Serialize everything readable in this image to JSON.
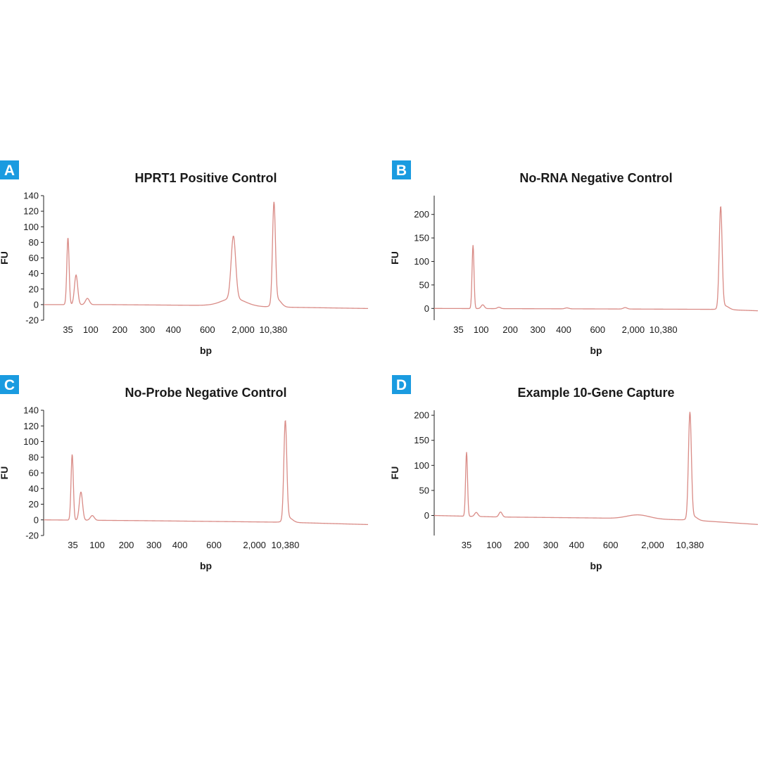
{
  "chart_data": [
    {
      "panel": "A",
      "type": "line",
      "title": "HPRT1 Positive Control",
      "xlabel": "bp",
      "ylabel": "FU",
      "yticks": [
        -20,
        0,
        20,
        40,
        60,
        80,
        100,
        120,
        140
      ],
      "ylim": [
        -20,
        140
      ],
      "xticks": [
        "35",
        "100",
        "200",
        "300",
        "400",
        "600",
        "2,000",
        "10,380"
      ],
      "xlim": [
        0,
        100
      ],
      "xtick_pos": [
        7.5,
        14.5,
        23.5,
        32,
        40,
        50.5,
        61.5,
        70.8
      ],
      "baseline": [
        [
          0,
          0
        ],
        [
          20,
          0
        ],
        [
          50,
          -1
        ],
        [
          70,
          -3
        ],
        [
          100,
          -5
        ]
      ],
      "peaks": [
        {
          "x": 7.5,
          "y": 86,
          "w": 0.35
        },
        {
          "x": 10,
          "y": 38,
          "w": 0.5
        },
        {
          "x": 13.5,
          "y": 8,
          "w": 0.6
        },
        {
          "x": 58.5,
          "y": 80,
          "w": 0.7
        },
        {
          "x": 58.5,
          "y": 10,
          "w": 3.5
        },
        {
          "x": 71,
          "y": 128,
          "w": 0.45
        },
        {
          "x": 72,
          "y": 10,
          "w": 1.2
        }
      ]
    },
    {
      "panel": "B",
      "type": "line",
      "title": "No-RNA Negative Control",
      "xlabel": "bp",
      "ylabel": "FU",
      "yticks": [
        0,
        50,
        100,
        150,
        200
      ],
      "ylim": [
        -25,
        240
      ],
      "xticks": [
        "35",
        "100",
        "200",
        "300",
        "400",
        "600",
        "2,000",
        "10,380"
      ],
      "xlim": [
        0,
        100
      ],
      "xtick_pos": [
        7.5,
        14.5,
        23.5,
        32,
        40,
        50.5,
        61.5,
        70.8
      ],
      "baseline": [
        [
          0,
          0
        ],
        [
          50,
          -1
        ],
        [
          88,
          -2
        ],
        [
          100,
          -5
        ]
      ],
      "peaks": [
        {
          "x": 12,
          "y": 135,
          "w": 0.3
        },
        {
          "x": 15,
          "y": 8,
          "w": 0.5
        },
        {
          "x": 20,
          "y": 3,
          "w": 0.5
        },
        {
          "x": 41,
          "y": 2,
          "w": 0.6
        },
        {
          "x": 59,
          "y": 3,
          "w": 0.6
        },
        {
          "x": 88.5,
          "y": 215,
          "w": 0.45
        },
        {
          "x": 89.8,
          "y": 8,
          "w": 1.2
        }
      ]
    },
    {
      "panel": "C",
      "type": "line",
      "title": "No-Probe Negative Control",
      "xlabel": "bp",
      "ylabel": "FU",
      "yticks": [
        -20,
        0,
        20,
        40,
        60,
        80,
        100,
        120,
        140
      ],
      "ylim": [
        -20,
        140
      ],
      "xticks": [
        "35",
        "100",
        "200",
        "300",
        "400",
        "600",
        "2,000",
        "10,380"
      ],
      "xlim": [
        0,
        100
      ],
      "xtick_pos": [
        9,
        16.5,
        25.5,
        34,
        42,
        52.5,
        65,
        74.5
      ],
      "baseline": [
        [
          0,
          0
        ],
        [
          30,
          -1
        ],
        [
          74,
          -3
        ],
        [
          100,
          -6
        ]
      ],
      "peaks": [
        {
          "x": 8.8,
          "y": 84,
          "w": 0.35
        },
        {
          "x": 11.5,
          "y": 36,
          "w": 0.5
        },
        {
          "x": 15,
          "y": 6,
          "w": 0.6
        },
        {
          "x": 74.5,
          "y": 126,
          "w": 0.45
        },
        {
          "x": 75.5,
          "y": 6,
          "w": 1.2
        }
      ]
    },
    {
      "panel": "D",
      "type": "line",
      "title": "Example 10-Gene Capture",
      "xlabel": "bp",
      "ylabel": "FU",
      "yticks": [
        0,
        50,
        100,
        150,
        200
      ],
      "ylim": [
        -40,
        210
      ],
      "xticks": [
        "35",
        "100",
        "200",
        "300",
        "400",
        "600",
        "2,000",
        "10,380"
      ],
      "xlim": [
        0,
        100
      ],
      "xtick_pos": [
        10,
        18.5,
        27,
        36,
        44,
        54.5,
        67.5,
        79
      ],
      "baseline": [
        [
          0,
          0
        ],
        [
          20,
          -3
        ],
        [
          50,
          -5
        ],
        [
          79,
          -9
        ],
        [
          100,
          -18
        ]
      ],
      "peaks": [
        {
          "x": 10,
          "y": 128,
          "w": 0.3
        },
        {
          "x": 13,
          "y": 8,
          "w": 0.5
        },
        {
          "x": 20.5,
          "y": 10,
          "w": 0.5
        },
        {
          "x": 63,
          "y": 8,
          "w": 3.5
        },
        {
          "x": 79,
          "y": 210,
          "w": 0.45
        },
        {
          "x": 80,
          "y": 8,
          "w": 1.2
        }
      ]
    }
  ]
}
